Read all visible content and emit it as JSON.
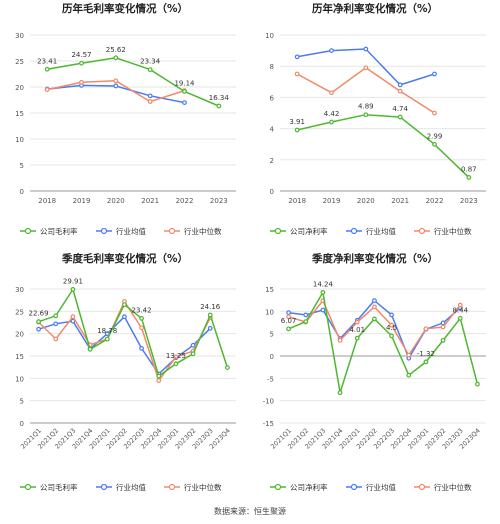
{
  "source_text": "数据来源：恒生聚源",
  "colors": {
    "company": "#4db82f",
    "avg": "#4a7cf0",
    "median": "#f0896a",
    "grid": "#e6e6e6",
    "text": "#555555"
  },
  "chart_data": [
    {
      "type": "line",
      "title": "历年毛利率变化情况（%）",
      "x": [
        "2018",
        "2019",
        "2020",
        "2021",
        "2022",
        "2023"
      ],
      "ylim": [
        0,
        30
      ],
      "yticks": [
        0,
        5,
        10,
        15,
        20,
        25,
        30
      ],
      "grid": true,
      "legend": "bottom",
      "series": [
        {
          "name": "公司毛利率",
          "color": "#4db82f",
          "values": [
            23.41,
            24.57,
            25.62,
            23.34,
            19.14,
            16.34
          ],
          "labels": [
            "23.41",
            "24.57",
            "25.62",
            "23.34",
            "19.14",
            "16.34"
          ]
        },
        {
          "name": "行业均值",
          "color": "#4a7cf0",
          "values": [
            19.6,
            20.3,
            20.2,
            18.3,
            17.0,
            null
          ]
        },
        {
          "name": "行业中位数",
          "color": "#f0896a",
          "values": [
            19.5,
            20.9,
            21.2,
            17.2,
            19.3,
            null
          ]
        }
      ]
    },
    {
      "type": "line",
      "title": "历年净利率变化情况（%）",
      "x": [
        "2018",
        "2019",
        "2020",
        "2021",
        "2022",
        "2023"
      ],
      "ylim": [
        0,
        10
      ],
      "yticks": [
        0,
        2,
        4,
        6,
        8,
        10
      ],
      "grid": true,
      "legend": "bottom",
      "series": [
        {
          "name": "公司净利率",
          "color": "#4db82f",
          "values": [
            3.91,
            4.42,
            4.89,
            4.74,
            2.99,
            0.87
          ],
          "labels": [
            "3.91",
            "4.42",
            "4.89",
            "4.74",
            "2.99",
            "0.87"
          ]
        },
        {
          "name": "行业均值",
          "color": "#4a7cf0",
          "values": [
            8.6,
            9.0,
            9.1,
            6.8,
            7.5,
            null
          ]
        },
        {
          "name": "行业中位数",
          "color": "#f0896a",
          "values": [
            7.5,
            6.3,
            7.9,
            6.4,
            5.0,
            null
          ]
        }
      ]
    },
    {
      "type": "line",
      "title": "季度毛利率变化情况（%）",
      "x": [
        "2021Q1",
        "2021Q2",
        "2021Q3",
        "2021Q4",
        "2022Q1",
        "2022Q2",
        "2022Q3",
        "2022Q4",
        "2023Q1",
        "2023Q2",
        "2023Q3",
        "2023Q4"
      ],
      "ylim": [
        0,
        30
      ],
      "yticks": [
        0,
        5,
        10,
        15,
        20,
        25,
        30
      ],
      "grid": true,
      "legend": "bottom",
      "series": [
        {
          "name": "公司毛利率",
          "color": "#4db82f",
          "values": [
            22.69,
            24.0,
            29.91,
            16.5,
            18.78,
            26.5,
            23.42,
            10.5,
            13.25,
            15.5,
            24.16,
            12.4
          ],
          "labels": [
            "22.69",
            "",
            "29.91",
            "",
            "18.78",
            "",
            "23.42",
            "",
            "13.25",
            "",
            "24.16",
            ""
          ]
        },
        {
          "name": "行业均值",
          "color": "#4a7cf0",
          "values": [
            21.0,
            22.2,
            22.8,
            16.6,
            20.0,
            23.8,
            16.7,
            11.0,
            14.6,
            17.4,
            21.2,
            null
          ]
        },
        {
          "name": "行业中位数",
          "color": "#f0896a",
          "values": [
            22.6,
            18.8,
            23.8,
            17.5,
            18.8,
            27.2,
            21.3,
            9.5,
            14.8,
            16.1,
            23.6,
            null
          ]
        }
      ]
    },
    {
      "type": "line",
      "title": "季度净利率变化情况（%）",
      "x": [
        "2021Q1",
        "2021Q2",
        "2021Q3",
        "2021Q4",
        "2022Q1",
        "2022Q2",
        "2022Q3",
        "2022Q4",
        "2023Q1",
        "2023Q2",
        "2023Q3",
        "2023Q4"
      ],
      "ylim": [
        -15,
        15
      ],
      "yticks": [
        -15,
        -10,
        -5,
        0,
        5,
        10,
        15
      ],
      "grid": true,
      "legend": "bottom",
      "series": [
        {
          "name": "公司净利率",
          "color": "#4db82f",
          "values": [
            6.07,
            7.7,
            14.24,
            -8.2,
            4.01,
            8.3,
            4.5,
            -4.3,
            -1.32,
            3.5,
            8.44,
            -6.3
          ],
          "labels": [
            "6.07",
            "",
            "14.24",
            "",
            "4.01",
            "",
            "4.5",
            "",
            "-1.32",
            "",
            "8.44",
            ""
          ]
        },
        {
          "name": "行业均值",
          "color": "#4a7cf0",
          "values": [
            9.7,
            9.2,
            10.3,
            3.9,
            8.0,
            12.4,
            9.2,
            -0.5,
            6.0,
            7.4,
            10.8,
            null
          ]
        },
        {
          "name": "行业中位数",
          "color": "#f0896a",
          "values": [
            8.8,
            7.6,
            12.4,
            3.5,
            7.6,
            11.0,
            6.9,
            0.2,
            6.1,
            6.5,
            11.4,
            null
          ]
        }
      ]
    }
  ]
}
